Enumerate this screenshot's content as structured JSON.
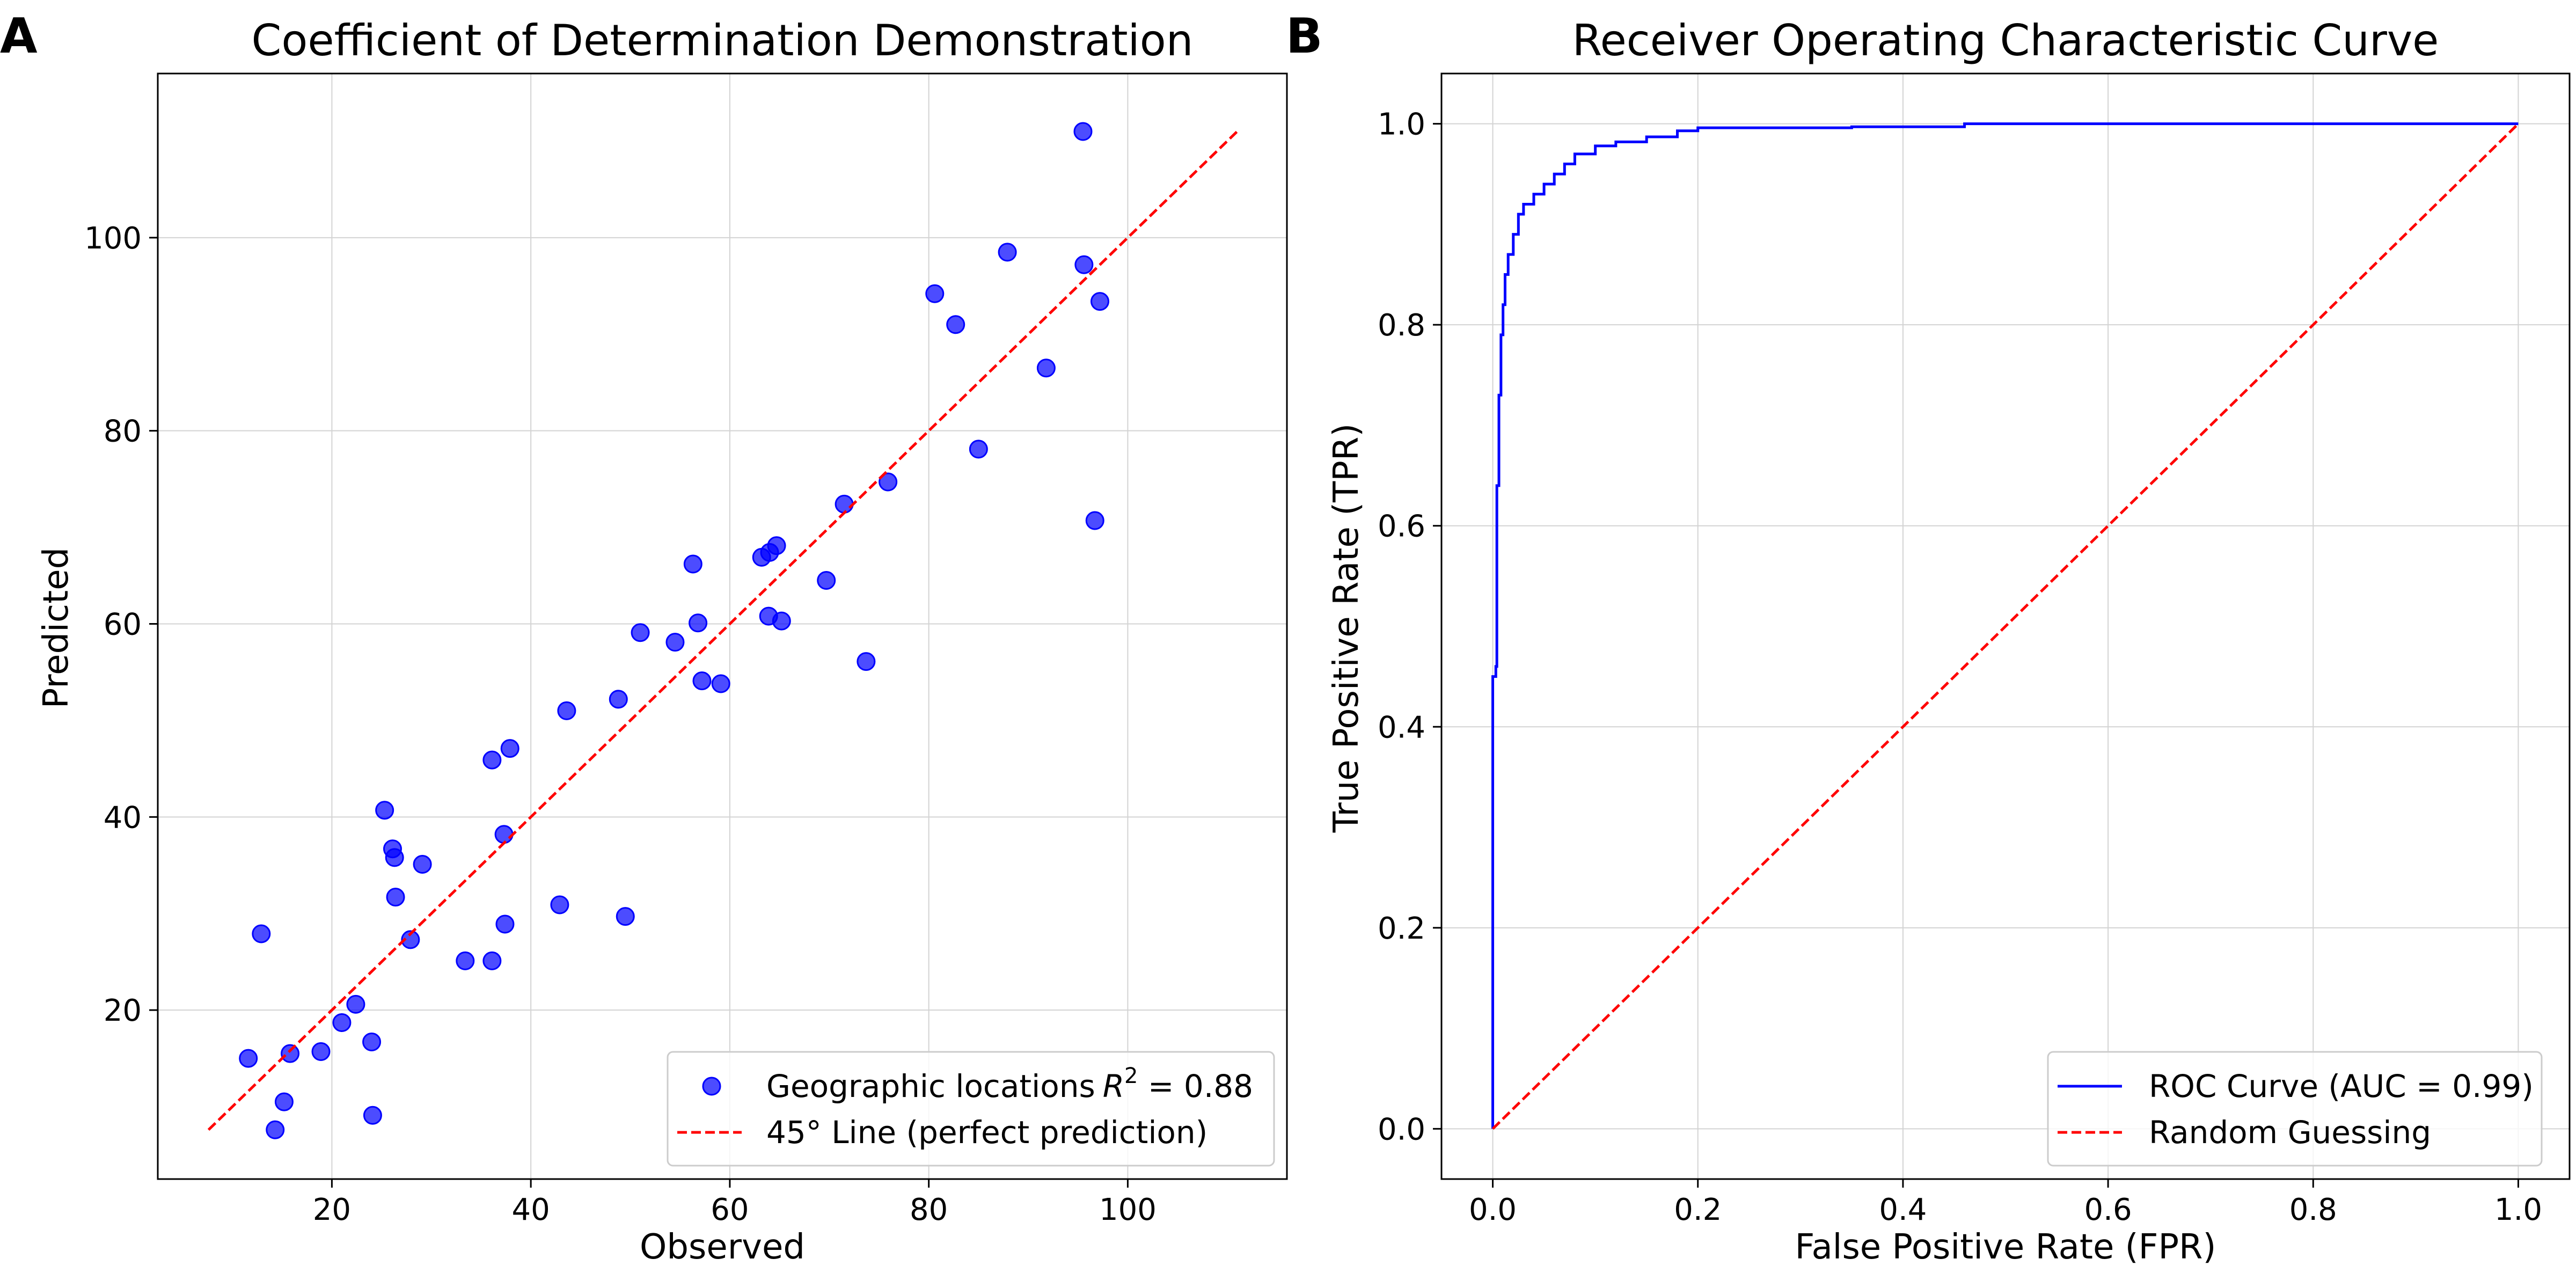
{
  "colors": {
    "points": "#0000ff",
    "roc_line": "#0000ff",
    "reference_line": "#ff0000",
    "grid": "#d3d3d3",
    "axes": "#000000"
  },
  "chart_data": [
    {
      "panel_label": "A",
      "type": "scatter",
      "title": "Coefficient of Determination Demonstration",
      "xlabel": "Observed",
      "ylabel": "Predicted",
      "xlim": [
        2.5,
        116
      ],
      "ylim": [
        2.5,
        117
      ],
      "xticks": [
        20,
        40,
        60,
        80,
        100
      ],
      "yticks": [
        20,
        40,
        60,
        80,
        100
      ],
      "grid": true,
      "legend_position": "lower-right",
      "series": [
        {
          "name": "Geographic locations",
          "name_suffix_text": "R",
          "name_suffix_sup": "2",
          "name_suffix_tail": " = 0.88",
          "kind": "points",
          "color": "#0000ff",
          "points": [
            [
              11.6,
              15.0
            ],
            [
              12.9,
              27.9
            ],
            [
              14.3,
              7.6
            ],
            [
              15.2,
              10.5
            ],
            [
              15.8,
              15.5
            ],
            [
              18.9,
              15.7
            ],
            [
              21.0,
              18.7
            ],
            [
              22.4,
              20.6
            ],
            [
              24.0,
              16.7
            ],
            [
              24.1,
              9.1
            ],
            [
              25.3,
              40.7
            ],
            [
              26.1,
              36.7
            ],
            [
              26.3,
              35.8
            ],
            [
              26.4,
              31.7
            ],
            [
              27.9,
              27.3
            ],
            [
              29.1,
              35.1
            ],
            [
              33.4,
              25.1
            ],
            [
              36.1,
              25.1
            ],
            [
              36.1,
              45.9
            ],
            [
              37.3,
              38.2
            ],
            [
              37.4,
              28.9
            ],
            [
              37.9,
              47.1
            ],
            [
              42.9,
              30.9
            ],
            [
              43.6,
              51.0
            ],
            [
              48.8,
              52.2
            ],
            [
              49.5,
              29.7
            ],
            [
              51.0,
              59.1
            ],
            [
              54.5,
              58.1
            ],
            [
              56.3,
              66.2
            ],
            [
              56.8,
              60.1
            ],
            [
              57.2,
              54.1
            ],
            [
              59.1,
              53.8
            ],
            [
              63.2,
              66.9
            ],
            [
              63.9,
              60.8
            ],
            [
              64.0,
              67.4
            ],
            [
              64.7,
              68.1
            ],
            [
              65.2,
              60.3
            ],
            [
              69.7,
              64.5
            ],
            [
              71.5,
              72.4
            ],
            [
              73.7,
              56.1
            ],
            [
              75.9,
              74.7
            ],
            [
              80.6,
              94.2
            ],
            [
              82.7,
              91.0
            ],
            [
              85.0,
              78.1
            ],
            [
              87.9,
              98.5
            ],
            [
              91.8,
              86.5
            ],
            [
              95.5,
              111.0
            ],
            [
              95.6,
              97.2
            ],
            [
              96.7,
              70.7
            ],
            [
              97.2,
              93.4
            ]
          ]
        },
        {
          "name": "45° Line (perfect prediction)",
          "kind": "dashed-line",
          "color": "#ff0000",
          "points": [
            [
              7.6,
              7.6
            ],
            [
              111.0,
              111.0
            ]
          ]
        }
      ]
    },
    {
      "panel_label": "B",
      "type": "line",
      "title": "Receiver Operating Characteristic Curve",
      "xlabel": "False Positive Rate (FPR)",
      "ylabel": "True Positive Rate (TPR)",
      "xlim": [
        -0.05,
        1.05
      ],
      "ylim": [
        -0.05,
        1.05
      ],
      "xticks": [
        "0.0",
        "0.2",
        "0.4",
        "0.6",
        "0.8",
        "1.0"
      ],
      "yticks": [
        "0.0",
        "0.2",
        "0.4",
        "0.6",
        "0.8",
        "1.0"
      ],
      "grid": true,
      "legend_position": "lower-right",
      "series": [
        {
          "name": "ROC Curve (AUC = 0.99)",
          "kind": "step-line",
          "color": "#0000ff",
          "points": [
            [
              0.0,
              0.0
            ],
            [
              0.0,
              0.45
            ],
            [
              0.003,
              0.46
            ],
            [
              0.004,
              0.64
            ],
            [
              0.006,
              0.73
            ],
            [
              0.008,
              0.79
            ],
            [
              0.01,
              0.82
            ],
            [
              0.012,
              0.85
            ],
            [
              0.015,
              0.87
            ],
            [
              0.02,
              0.89
            ],
            [
              0.025,
              0.91
            ],
            [
              0.03,
              0.92
            ],
            [
              0.04,
              0.93
            ],
            [
              0.05,
              0.94
            ],
            [
              0.06,
              0.95
            ],
            [
              0.07,
              0.96
            ],
            [
              0.08,
              0.97
            ],
            [
              0.1,
              0.978
            ],
            [
              0.12,
              0.982
            ],
            [
              0.15,
              0.987
            ],
            [
              0.18,
              0.993
            ],
            [
              0.2,
              0.996
            ],
            [
              0.35,
              0.997
            ],
            [
              0.46,
              1.0
            ],
            [
              1.0,
              1.0
            ]
          ]
        },
        {
          "name": "Random Guessing",
          "kind": "dashed-line",
          "color": "#ff0000",
          "points": [
            [
              0.0,
              0.0
            ],
            [
              1.0,
              1.0
            ]
          ]
        }
      ]
    }
  ]
}
